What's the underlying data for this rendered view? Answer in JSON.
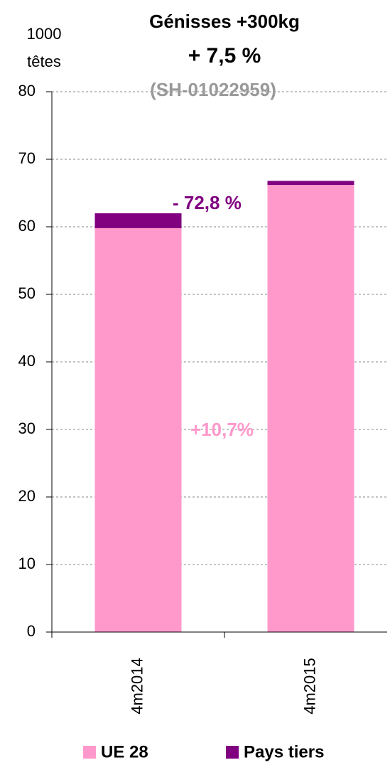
{
  "chart_data": {
    "type": "stacked_bar",
    "title": "Génisses +300kg",
    "subtitle": "+ 7,5 %",
    "code": "(SH-01022959)",
    "ylabel_lines": [
      "1000",
      "têtes"
    ],
    "categories": [
      "4m2014",
      "4m2015"
    ],
    "series": [
      {
        "name": "UE 28",
        "color": "#ff99cc",
        "values": [
          59.8,
          66.2
        ]
      },
      {
        "name": "Pays tiers",
        "color": "#800080",
        "values": [
          2.2,
          0.6
        ]
      }
    ],
    "annotations": [
      {
        "text": "- 72,8 %",
        "color": "#800080"
      },
      {
        "text": "+10,7%",
        "color": "#ff99cc"
      }
    ],
    "ylim": [
      0,
      80
    ],
    "yticks": [
      0,
      10,
      20,
      30,
      40,
      50,
      60,
      70,
      80
    ],
    "grid": true,
    "legend": "bottom"
  }
}
